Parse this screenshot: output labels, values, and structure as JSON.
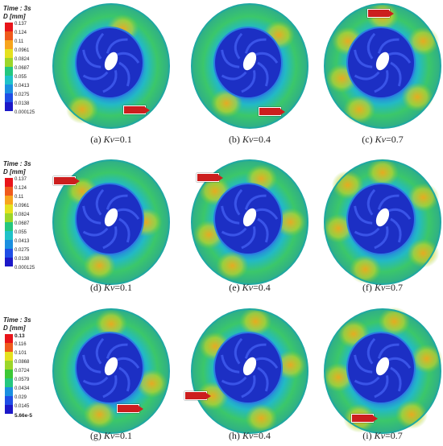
{
  "legends": [
    {
      "time_label": "Time : 3s",
      "unit_label": "D [mm]",
      "values": [
        "0.137",
        "0.124",
        "0.11",
        "0.0961",
        "0.0824",
        "0.0687",
        "0.055",
        "0.0413",
        "0.0275",
        "0.0138",
        "0.000125"
      ]
    },
    {
      "time_label": "Time : 3s",
      "unit_label": "D [mm]",
      "values": [
        "0.137",
        "0.124",
        "0.11",
        "0.0961",
        "0.0824",
        "0.0687",
        "0.055",
        "0.0413",
        "0.0275",
        "0.0138",
        "0.000125"
      ]
    },
    {
      "time_label": "Time : 3s",
      "unit_label": "D [mm]",
      "values": [
        "0.13",
        "0.116",
        "0.101",
        "0.0868",
        "0.0724",
        "0.0579",
        "0.0434",
        "0.029",
        "0.0145",
        "5.66e-5"
      ]
    }
  ],
  "legend_colors": [
    "#e8141a",
    "#ef5a1c",
    "#f7a51d",
    "#e5e11f",
    "#9cd62a",
    "#3cc836",
    "#24c77f",
    "#1fc2c9",
    "#1b8fe0",
    "#1f4ee6",
    "#1c18c8"
  ],
  "panels": [
    {
      "prefix": "(a) ",
      "kv": "Kv",
      "value": "=0.1"
    },
    {
      "prefix": "(b) ",
      "kv": "Kv",
      "value": "=0.4"
    },
    {
      "prefix": "(c) ",
      "kv": "Kv",
      "value": "=0.7"
    },
    {
      "prefix": "(d) ",
      "kv": "Kv",
      "value": "=0.1"
    },
    {
      "prefix": "(e) ",
      "kv": "Kv",
      "value": "=0.4"
    },
    {
      "prefix": "(f) ",
      "kv": "Kv",
      "value": "=0.7"
    },
    {
      "prefix": "(g) ",
      "kv": "Kv",
      "value": "=0.1"
    },
    {
      "prefix": "(h) ",
      "kv": "Kv",
      "value": "=0.4"
    },
    {
      "prefix": "(i) ",
      "kv": "Kv",
      "value": "=0.7"
    }
  ]
}
